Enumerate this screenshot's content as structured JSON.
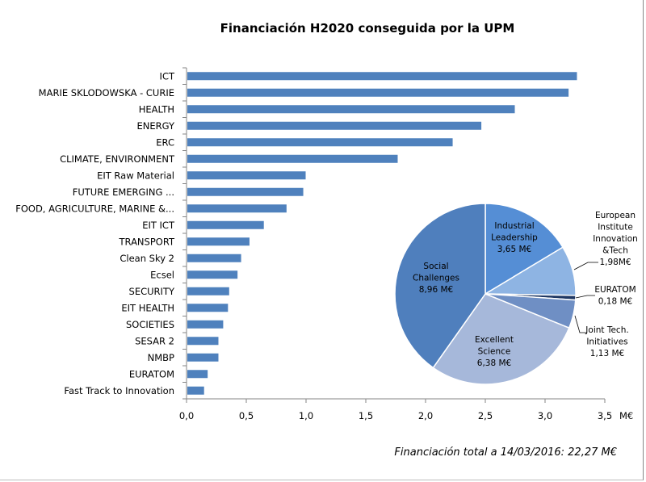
{
  "chart_data": [
    {
      "type": "bar",
      "orientation": "horizontal",
      "title": "Financiación  H2020 conseguida por la UPM",
      "xlabel": "M€",
      "xlim": [
        0,
        3.5
      ],
      "xticks": [
        "0,0",
        "0,5",
        "1,0",
        "1,5",
        "2,0",
        "2,5",
        "3,0",
        "3,5"
      ],
      "grid": false,
      "color": "#4f81bd",
      "categories": [
        "ICT",
        "MARIE SKLODOWSKA - CURIE",
        "HEALTH",
        "ENERGY",
        "ERC",
        "CLIMATE, ENVIRONMENT",
        "EIT Raw  Material",
        "FUTURE EMERGING ...",
        "FOOD, AGRICULTURE,  MARINE &...",
        "EIT ICT",
        "TRANSPORT",
        "Clean Sky 2",
        "Ecsel",
        "SECURITY",
        "EIT HEALTH",
        "SOCIETIES",
        "SESAR 2",
        "NMBP",
        "EURATOM",
        "Fast Track to Innovation"
      ],
      "values": [
        3.26,
        3.19,
        2.74,
        2.46,
        2.22,
        1.76,
        0.99,
        0.97,
        0.83,
        0.64,
        0.52,
        0.45,
        0.42,
        0.35,
        0.34,
        0.3,
        0.26,
        0.26,
        0.17,
        0.14
      ]
    },
    {
      "type": "pie",
      "start": "top, clockwise",
      "slices": [
        {
          "label": [
            "Industrial",
            "Leadership",
            "3,65 M€"
          ],
          "value": 3.65,
          "color": "#558ed5"
        },
        {
          "label": [
            "European",
            "Institute",
            "Innovation",
            "&Tech",
            "1,98M€"
          ],
          "value": 1.98,
          "color": "#8eb4e3"
        },
        {
          "label": [
            "EURATOM",
            "0,18 M€"
          ],
          "value": 0.18,
          "color": "#1f3864"
        },
        {
          "label": [
            "Joint Tech.",
            "Initiatives",
            "1,13 M€"
          ],
          "value": 1.13,
          "color": "#6f8fc4"
        },
        {
          "label": [
            "Excellent",
            "Science",
            "6,38 M€"
          ],
          "value": 6.38,
          "color": "#a6b8da"
        },
        {
          "label": [
            "Social",
            "Challenges",
            "8,96 M€"
          ],
          "value": 8.96,
          "color": "#4f7fbd"
        }
      ]
    }
  ],
  "footer": "Financiación total a 14/03/2016:  22,27 M€"
}
